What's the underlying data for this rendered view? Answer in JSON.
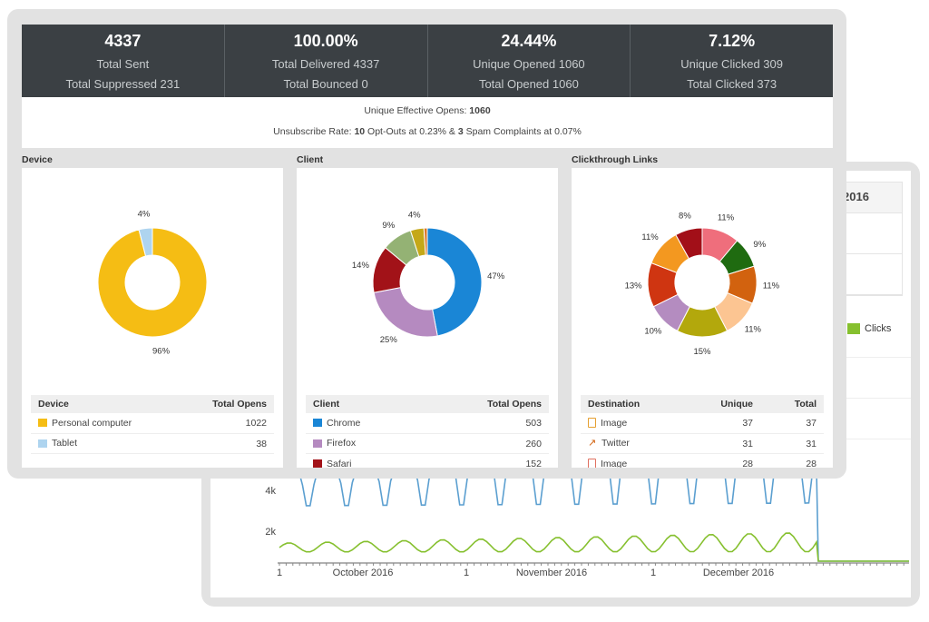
{
  "stats": [
    {
      "big": "4337",
      "line1": "Total Sent",
      "line2": "Total Suppressed 231"
    },
    {
      "big": "100.00%",
      "line1": "Total Delivered 4337",
      "line2": "Total Bounced 0"
    },
    {
      "big": "24.44%",
      "line1": "Unique Opened 1060",
      "line2": "Total Opened 1060"
    },
    {
      "big": "7.12%",
      "line1": "Unique Clicked 309",
      "line2": "Total Clicked 373"
    }
  ],
  "summary": {
    "effective_label": "Unique Effective Opens: ",
    "effective_value": "1060",
    "unsub_label": "Unsubscribe Rate: ",
    "optouts": "10",
    "optouts_text": " Opt-Outs at 0.23% & ",
    "spam": "3",
    "spam_text": " Spam Complaints at 0.07%"
  },
  "device": {
    "title": "Device",
    "headers": [
      "Device",
      "Total Opens"
    ],
    "rows": [
      {
        "label": "Personal computer",
        "value": "1022",
        "color": "#f5bd14"
      },
      {
        "label": "Tablet",
        "value": "38",
        "color": "#aed4ef"
      }
    ],
    "slices": [
      {
        "label": "96%",
        "pct": 96,
        "color": "#f5bd14"
      },
      {
        "label": "4%",
        "pct": 4,
        "color": "#aed4ef"
      }
    ]
  },
  "client": {
    "title": "Client",
    "headers": [
      "Client",
      "Total Opens"
    ],
    "rows": [
      {
        "label": "Chrome",
        "value": "503",
        "color": "#1a86d6"
      },
      {
        "label": "Firefox",
        "value": "260",
        "color": "#b58ac0"
      },
      {
        "label": "Safari",
        "value": "152",
        "color": "#a21218"
      }
    ],
    "slices": [
      {
        "label": "47%",
        "pct": 47,
        "color": "#1a86d6"
      },
      {
        "label": "25%",
        "pct": 25,
        "color": "#b58ac0"
      },
      {
        "label": "14%",
        "pct": 14,
        "color": "#a21218"
      },
      {
        "label": "9%",
        "pct": 9,
        "color": "#94b274"
      },
      {
        "label": "4%",
        "pct": 4,
        "color": "#c5a818"
      },
      {
        "label": "",
        "pct": 1,
        "color": "#d9772a"
      }
    ]
  },
  "links": {
    "title": "Clickthrough Links",
    "headers": [
      "Destination",
      "Unique",
      "Total"
    ],
    "rows": [
      {
        "label": "Image",
        "unique": "37",
        "total": "37",
        "icon": "file-icon"
      },
      {
        "label": "Twitter",
        "unique": "31",
        "total": "31",
        "icon": "external-link-icon"
      },
      {
        "label": "Image",
        "unique": "28",
        "total": "28",
        "icon": "file-icon"
      }
    ],
    "slices": [
      {
        "label": "11%",
        "pct": 11,
        "color": "#ef6e7c"
      },
      {
        "label": "9%",
        "pct": 9,
        "color": "#1f6b10"
      },
      {
        "label": "11%",
        "pct": 11,
        "color": "#d2620f"
      },
      {
        "label": "11%",
        "pct": 11,
        "color": "#fcc592"
      },
      {
        "label": "15%",
        "pct": 15,
        "color": "#b3a80c"
      },
      {
        "label": "10%",
        "pct": 10,
        "color": "#b48cc0"
      },
      {
        "label": "13%",
        "pct": 13,
        "color": "#cf3511"
      },
      {
        "label": "11%",
        "pct": 11,
        "color": "#f39820"
      },
      {
        "label": "8%",
        "pct": 8,
        "color": "#a20f18"
      }
    ]
  },
  "timeline": {
    "table_header": "2016",
    "legend_label": "Clicks",
    "legend_color": "#86c02f",
    "opens_color": "#5b9fd0",
    "y_ticks": [
      "4k",
      "2k"
    ],
    "x_ticks": [
      "1",
      "October 2016",
      "1",
      "November 2016",
      "1",
      "December 2016"
    ]
  }
}
